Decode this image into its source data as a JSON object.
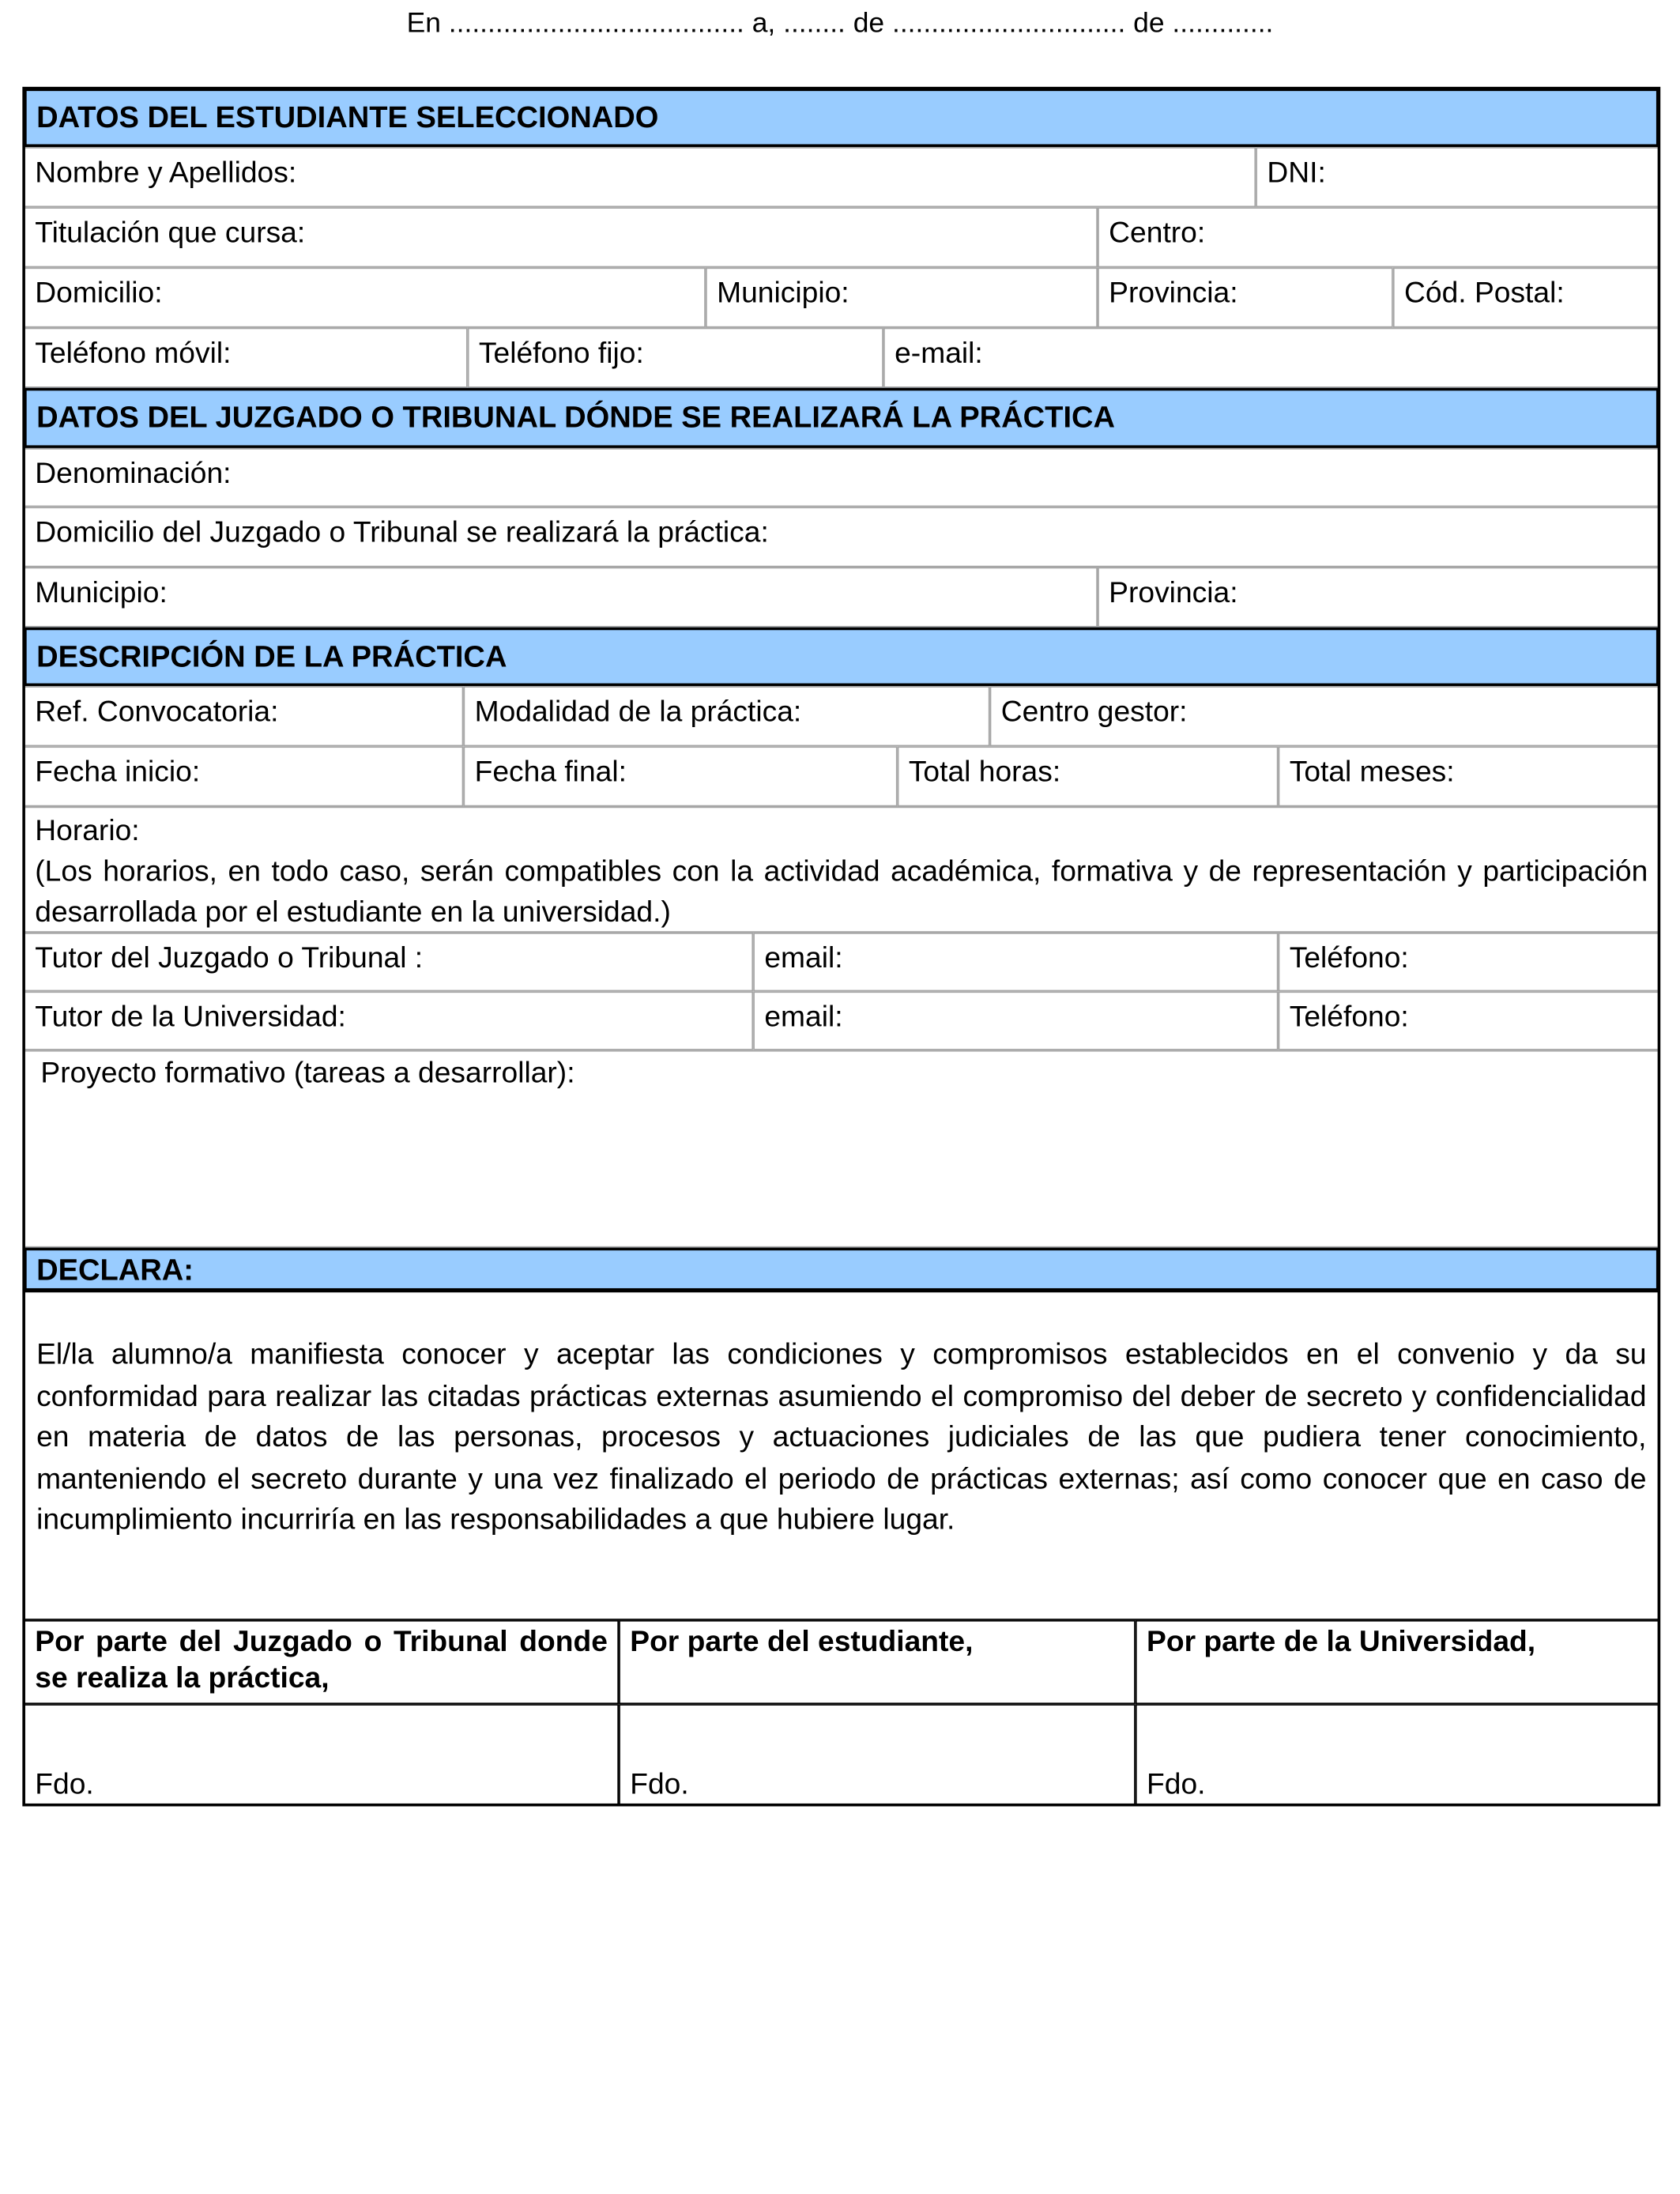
{
  "place_date_line": "En ...................................... a, ........ de .............................. de .............",
  "section_student": {
    "title": "DATOS DEL ESTUDIANTE SELECCIONADO",
    "nombre": "Nombre y Apellidos:",
    "dni": "DNI:",
    "titulacion": "Titulación que cursa:",
    "centro": "Centro:",
    "domicilio": "Domicilio:",
    "municipio": "Municipio:",
    "provincia": "Provincia:",
    "cod_postal": "Cód. Postal:",
    "telefono_movil": "Teléfono móvil:",
    "telefono_fijo": "Teléfono fijo:",
    "email": "e-mail:"
  },
  "section_court": {
    "title": "DATOS DEL JUZGADO O TRIBUNAL DÓNDE SE REALIZARÁ LA PRÁCTICA",
    "denominacion": "Denominación:",
    "domicilio": "Domicilio del Juzgado o Tribunal se realizará la práctica:",
    "municipio": "Municipio:",
    "provincia": "Provincia:"
  },
  "section_practice": {
    "title": "DESCRIPCIÓN DE LA PRÁCTICA",
    "ref_convocatoria": "Ref. Convocatoria:",
    "modalidad": "Modalidad de la práctica:",
    "centro_gestor": "Centro gestor:",
    "fecha_inicio": "Fecha inicio:",
    "fecha_final": "Fecha final:",
    "total_horas": "Total horas:",
    "total_meses": "Total meses:",
    "horario_label": "Horario:",
    "horario_note": "(Los horarios, en todo caso, serán compatibles con la actividad académica, formativa y de representación y participación desarrollada por el estudiante en la universidad.)",
    "tutor_juzgado": "Tutor del Juzgado o Tribunal :",
    "tutor_juzgado_email": "email:",
    "tutor_juzgado_telefono": "Teléfono:",
    "tutor_universidad": "Tutor de la Universidad:",
    "tutor_universidad_email": "email:",
    "tutor_universidad_telefono": "Teléfono:",
    "proyecto": "Proyecto formativo (tareas a desarrollar):"
  },
  "section_declara": {
    "title": "DECLARA:",
    "text": "El/la alumno/a manifiesta conocer y aceptar las condiciones y compromisos establecidos en el convenio y da su conformidad para realizar las citadas prácticas externas  asumiendo el compromiso del deber de secreto y confidencialidad en materia de datos de las personas, procesos y actuaciones judiciales de las que pudiera tener conocimiento, manteniendo el secreto durante y una vez finalizado el periodo de prácticas externas; así como conocer que en caso de incumplimiento incurriría en las responsabilidades a que hubiere lugar."
  },
  "signatures": [
    {
      "heading": "Por parte del Juzgado o Tribunal donde se realiza la práctica,",
      "fdo": "Fdo."
    },
    {
      "heading": "Por parte del estudiante,",
      "fdo": "Fdo."
    },
    {
      "heading": "Por parte de la Universidad,",
      "fdo": "Fdo."
    }
  ],
  "colors": {
    "section_header_bg": "#99ccff"
  }
}
